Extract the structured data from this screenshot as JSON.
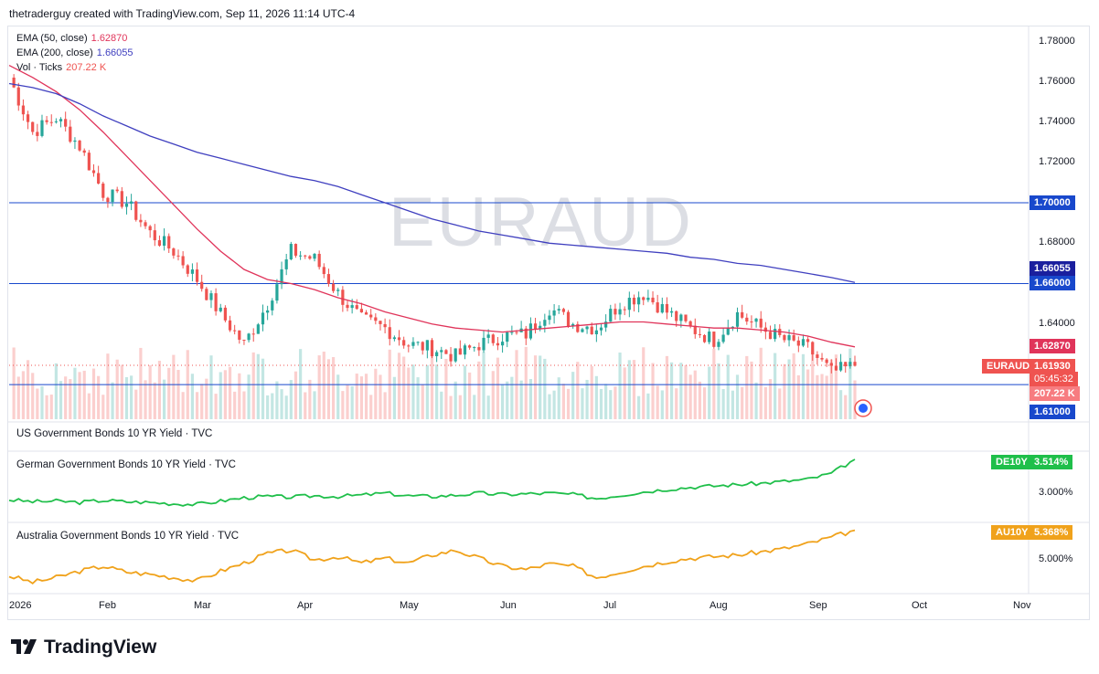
{
  "header": {
    "text": "thetraderguy created with TradingView.com, Sep 11, 2026 11:14 UTC-4"
  },
  "symbol_watermark": "EURAUD",
  "legend": {
    "ema50": {
      "label": "EMA (50, close)",
      "value": "1.62870",
      "color": "#e0345a"
    },
    "ema200": {
      "label": "EMA (200, close)",
      "value": "1.66055",
      "color": "#3f3fbf"
    },
    "vol": {
      "label": "Vol · Ticks",
      "value": "207.22 K",
      "color": "#ef5350"
    }
  },
  "price_axis": [
    "1.78000",
    "1.76000",
    "1.74000",
    "1.72000",
    "1.68000",
    "1.64000"
  ],
  "price_tags": {
    "level_170": "1.70000",
    "ema200_tag": "1.66055",
    "level_166": "1.66000",
    "ema50_tag": "1.62870",
    "symbol": "EURAUD",
    "last_price": "1.61930",
    "countdown": "05:45:32",
    "volume": "207.22 K",
    "level_161": "1.61000"
  },
  "panes": {
    "us": {
      "title": "US Government Bonds 10 YR Yield · TVC"
    },
    "de": {
      "title": "German Government Bonds 10 YR Yield · TVC",
      "tag_symbol": "DE10Y",
      "tag_value": "3.514%",
      "axis": "3.000%",
      "color": "#1fbf4a"
    },
    "au": {
      "title": "Australia Government Bonds 10 YR Yield · TVC",
      "tag_symbol": "AU10Y",
      "tag_value": "5.368%",
      "axis": "5.000%",
      "color": "#f0a21b"
    }
  },
  "x_axis": [
    "2026",
    "Feb",
    "Mar",
    "Apr",
    "May",
    "Jun",
    "Jul",
    "Aug",
    "Sep",
    "Oct",
    "Nov"
  ],
  "brand": "TradingView",
  "chart_data": {
    "type": "line",
    "title": "EURAUD",
    "interval": "daily",
    "ylim": [
      1.606,
      1.79
    ],
    "horizontal_levels": [
      1.7,
      1.66,
      1.61
    ],
    "x": [
      "2026-01-01",
      "2026-01-08",
      "2026-01-15",
      "2026-01-22",
      "2026-01-29",
      "2026-02-05",
      "2026-02-12",
      "2026-02-19",
      "2026-02-26",
      "2026-03-05",
      "2026-03-12",
      "2026-03-19",
      "2026-03-26",
      "2026-04-02",
      "2026-04-09",
      "2026-04-16",
      "2026-04-23",
      "2026-04-30",
      "2026-05-07",
      "2026-05-14",
      "2026-05-21",
      "2026-05-28",
      "2026-06-04",
      "2026-06-11",
      "2026-06-18",
      "2026-06-25",
      "2026-07-02",
      "2026-07-09",
      "2026-07-16",
      "2026-07-23",
      "2026-07-30",
      "2026-08-06",
      "2026-08-13",
      "2026-08-20",
      "2026-08-27",
      "2026-09-03",
      "2026-09-11"
    ],
    "series": [
      {
        "name": "EURAUD",
        "values": [
          1.762,
          1.735,
          1.742,
          1.728,
          1.705,
          1.7,
          1.685,
          1.676,
          1.662,
          1.645,
          1.63,
          1.65,
          1.676,
          1.672,
          1.655,
          1.642,
          1.638,
          1.63,
          1.628,
          1.624,
          1.63,
          1.634,
          1.635,
          1.648,
          1.64,
          1.638,
          1.65,
          1.655,
          1.646,
          1.638,
          1.632,
          1.645,
          1.638,
          1.632,
          1.628,
          1.616,
          1.6193
        ]
      },
      {
        "name": "EMA (50, close)",
        "values": [
          1.768,
          1.762,
          1.755,
          1.746,
          1.735,
          1.723,
          1.711,
          1.699,
          1.687,
          1.676,
          1.667,
          1.662,
          1.66,
          1.657,
          1.653,
          1.65,
          1.646,
          1.643,
          1.64,
          1.638,
          1.637,
          1.636,
          1.637,
          1.638,
          1.639,
          1.64,
          1.641,
          1.641,
          1.64,
          1.639,
          1.638,
          1.638,
          1.637,
          1.636,
          1.634,
          1.631,
          1.6287
        ]
      },
      {
        "name": "EMA (200, close)",
        "values": [
          1.759,
          1.757,
          1.754,
          1.749,
          1.743,
          1.738,
          1.733,
          1.729,
          1.725,
          1.722,
          1.719,
          1.716,
          1.713,
          1.711,
          1.708,
          1.704,
          1.7,
          1.696,
          1.692,
          1.689,
          1.686,
          1.684,
          1.682,
          1.68,
          1.679,
          1.678,
          1.677,
          1.676,
          1.675,
          1.673,
          1.672,
          1.67,
          1.669,
          1.667,
          1.665,
          1.663,
          1.66055
        ]
      }
    ],
    "bond_series": [
      {
        "name": "DE10Y",
        "values": [
          2.9,
          2.87,
          2.88,
          2.86,
          2.89,
          2.87,
          2.86,
          2.84,
          2.83,
          2.88,
          2.93,
          2.95,
          2.94,
          2.96,
          2.95,
          2.97,
          3.0,
          2.96,
          2.95,
          2.97,
          3.0,
          2.98,
          2.99,
          3.0,
          2.98,
          2.92,
          2.97,
          3.02,
          3.06,
          3.09,
          3.11,
          3.13,
          3.15,
          3.18,
          3.21,
          3.3,
          3.514
        ]
      },
      {
        "name": "AU10Y",
        "values": [
          4.8,
          4.72,
          4.78,
          4.86,
          4.92,
          4.85,
          4.82,
          4.78,
          4.74,
          4.86,
          4.96,
          5.08,
          5.12,
          5.0,
          5.04,
          4.96,
          5.02,
          4.96,
          5.06,
          5.12,
          5.02,
          4.92,
          4.88,
          4.95,
          4.92,
          4.78,
          4.85,
          4.92,
          4.98,
          5.02,
          5.04,
          5.06,
          5.1,
          5.14,
          5.2,
          5.28,
          5.368
        ]
      }
    ]
  }
}
